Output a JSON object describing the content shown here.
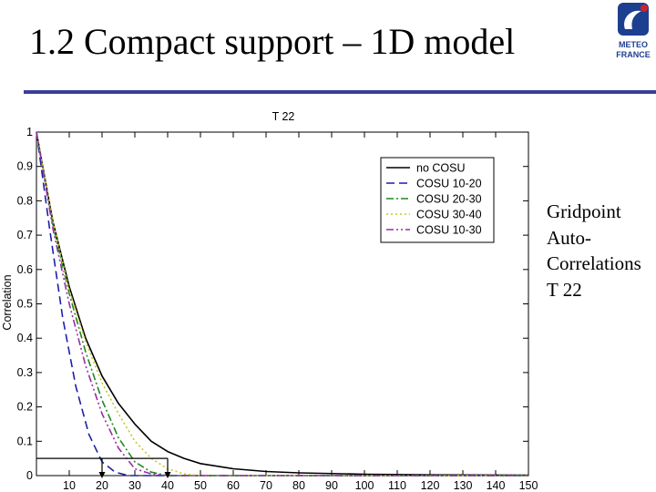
{
  "slide": {
    "title": "1.2 Compact support – 1D model",
    "logo_lines": [
      "METEO",
      "FRANCE"
    ],
    "side_note_lines": [
      "Gridpoint",
      "Auto-",
      "Correlations",
      "T 22"
    ]
  },
  "colors": {
    "header_rule": "#3a3f9a",
    "logo_blue": "#1d3f8f",
    "logo_red": "#d2232a"
  },
  "chart_data": {
    "type": "line",
    "title": "T 22",
    "xlabel": "",
    "ylabel": "Correlation",
    "xlim": [
      0,
      150
    ],
    "ylim": [
      0,
      1
    ],
    "xticks": [
      10,
      20,
      30,
      40,
      50,
      60,
      70,
      80,
      90,
      100,
      110,
      120,
      130,
      140,
      150
    ],
    "yticks": [
      0,
      0.1,
      0.2,
      0.3,
      0.4,
      0.5,
      0.6,
      0.7,
      0.8,
      0.9,
      1
    ],
    "ytick_labels": [
      "0",
      "0.1",
      "0.2",
      "0.3",
      "0.4",
      "0.5",
      "0.6",
      "0.7",
      "0.8",
      "0.9",
      "1"
    ],
    "grid": false,
    "legend_position": "top-right",
    "series": [
      {
        "name": "no COSU",
        "color": "#000000",
        "dash": "solid",
        "x": [
          0,
          5,
          10,
          15,
          20,
          25,
          30,
          35,
          40,
          45,
          50,
          60,
          70,
          80,
          100,
          120,
          150
        ],
        "y": [
          1.0,
          0.74,
          0.55,
          0.4,
          0.29,
          0.21,
          0.15,
          0.1,
          0.07,
          0.05,
          0.035,
          0.02,
          0.012,
          0.008,
          0.004,
          0.002,
          0.001
        ]
      },
      {
        "name": "COSU 10-20",
        "color": "#1f1fa8",
        "dash": "dashed",
        "x": [
          0,
          4,
          8,
          12,
          16,
          20,
          24,
          28,
          35,
          50,
          150
        ],
        "y": [
          1.0,
          0.72,
          0.46,
          0.26,
          0.12,
          0.04,
          0.01,
          0.0,
          0.0,
          0.0,
          0.0
        ]
      },
      {
        "name": "COSU 20-30",
        "color": "#1f8a1f",
        "dash": "dashdot",
        "x": [
          0,
          5,
          10,
          15,
          20,
          25,
          30,
          35,
          40,
          45,
          60,
          150
        ],
        "y": [
          1.0,
          0.73,
          0.53,
          0.36,
          0.22,
          0.11,
          0.04,
          0.01,
          0.0,
          0.0,
          0.0,
          0.0
        ]
      },
      {
        "name": "COSU 30-40",
        "color": "#c8c820",
        "dash": "dotted",
        "x": [
          0,
          5,
          10,
          15,
          20,
          25,
          30,
          35,
          40,
          45,
          50,
          60,
          150
        ],
        "y": [
          1.0,
          0.74,
          0.54,
          0.39,
          0.27,
          0.18,
          0.1,
          0.05,
          0.02,
          0.005,
          0.0,
          0.0,
          0.0
        ]
      },
      {
        "name": "COSU 10-30",
        "color": "#9a2ca8",
        "dash": "dashdotdot",
        "x": [
          0,
          5,
          10,
          15,
          20,
          25,
          30,
          35,
          40,
          50,
          150
        ],
        "y": [
          1.0,
          0.72,
          0.5,
          0.32,
          0.18,
          0.08,
          0.02,
          0.005,
          0.0,
          0.0,
          0.0
        ]
      }
    ],
    "annotations": [
      {
        "type": "threshold-marker",
        "y": 0.05,
        "x_values": [
          20,
          40
        ]
      }
    ]
  }
}
